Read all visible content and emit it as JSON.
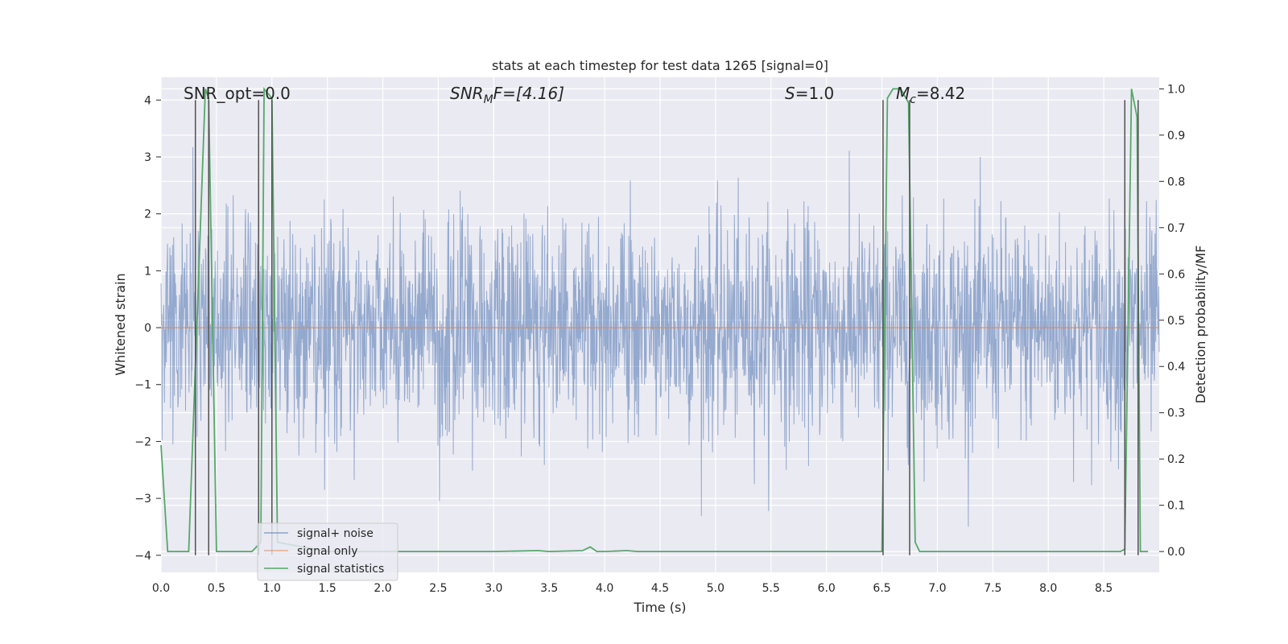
{
  "chart_data": {
    "type": "line",
    "title": "stats at each timestep for test data 1265 [signal=0]",
    "xlabel": "Time (s)",
    "ylabel": "Whitened strain",
    "y2label": "Detection probability/MF",
    "xlim": [
      0.0,
      9.0
    ],
    "ylim": [
      -4.3,
      4.4
    ],
    "y2lim": [
      -0.045,
      1.025
    ],
    "xticks": [
      "0.0",
      "0.5",
      "1.0",
      "1.5",
      "2.0",
      "2.5",
      "3.0",
      "3.5",
      "4.0",
      "4.5",
      "5.0",
      "5.5",
      "6.0",
      "6.5",
      "7.0",
      "7.5",
      "8.0",
      "8.5"
    ],
    "yticks": [
      "4",
      "3",
      "2",
      "1",
      "0",
      "−1",
      "−2",
      "−3",
      "−4"
    ],
    "y2ticks": [
      "1.0",
      "0.9",
      "0.8",
      "0.7",
      "0.6",
      "0.5",
      "0.4",
      "0.3",
      "0.2",
      "0.1",
      "0.0"
    ],
    "annotations": {
      "snr_opt": "SNR_opt=0.0",
      "snr_mf_base": "SNR",
      "snr_mf_sub": "M",
      "snr_mf_rest": "F=[4.16]",
      "s_stat_sym": "S",
      "s_stat_val": "=1.0",
      "mc_sym": "M",
      "mc_sub": "c",
      "mc_val": "=8.42"
    },
    "legend": {
      "position": "lower-left",
      "entries": [
        "signal+ noise",
        "signal only",
        "signal statistics"
      ]
    },
    "colors": {
      "noise": "#4c72b0",
      "signal": "#dd8452",
      "stats": "#55a868",
      "vlines": "#505050",
      "background": "#eaeaf2",
      "grid": "#ffffff"
    },
    "series": [
      {
        "name": "signal+ noise",
        "description": "whitened strain, gaussian noise approx. within -2.5..2.5 with peaks to ~4.0",
        "amplitude_range": [
          -3.5,
          4.0
        ]
      },
      {
        "name": "signal only",
        "x": [
          0.0,
          9.0
        ],
        "y": [
          0.0,
          0.0
        ]
      },
      {
        "name": "signal statistics",
        "axis": "right",
        "x": [
          0.0,
          0.06,
          0.25,
          0.4,
          0.43,
          0.5,
          0.82,
          0.9,
          0.93,
          1.0,
          1.05,
          1.5,
          2.0,
          2.5,
          3.0,
          3.4,
          3.5,
          3.8,
          3.87,
          3.93,
          4.0,
          4.2,
          4.3,
          5.0,
          5.5,
          6.0,
          6.5,
          6.55,
          6.6,
          6.67,
          6.74,
          6.8,
          6.84,
          6.9,
          7.5,
          8.0,
          8.5,
          8.65,
          8.69,
          8.75,
          8.8,
          8.83,
          8.9
        ],
        "y": [
          0.23,
          0.0,
          0.0,
          1.0,
          0.98,
          0.0,
          0.0,
          0.02,
          1.0,
          0.98,
          0.02,
          0.0,
          0.0,
          0.0,
          0.0,
          0.002,
          0.0,
          0.002,
          0.01,
          0.0,
          0.0,
          0.002,
          0.0,
          0.0,
          0.0,
          0.0,
          0.0,
          0.98,
          1.0,
          1.0,
          0.97,
          0.02,
          0.0,
          0.0,
          0.0,
          0.0,
          0.0,
          0.0,
          0.005,
          1.0,
          0.94,
          0.0,
          0.0
        ]
      }
    ],
    "vertical_lines": [
      0.31,
      0.43,
      0.88,
      1.0,
      6.51,
      6.75,
      8.69,
      8.81
    ]
  }
}
